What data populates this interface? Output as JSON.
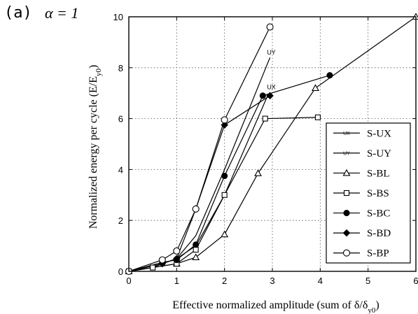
{
  "panel_label": "(a)",
  "alpha_label": "α = 1",
  "chart_data": {
    "type": "line",
    "title": "",
    "xlabel": "Effective normalized amplitude (sum of δ/δ",
    "xlabel_sub": "y0",
    "xlabel_end": ")",
    "ylabel": "Normalized energy per cycle (E/E",
    "ylabel_sub": "y0",
    "ylabel_end": ")",
    "xlim": [
      0,
      6
    ],
    "ylim": [
      0,
      10
    ],
    "xticks": [
      0,
      1,
      2,
      3,
      4,
      5,
      6
    ],
    "yticks": [
      0,
      2,
      4,
      6,
      8,
      10
    ],
    "grid": true,
    "legend_position": "right",
    "series": [
      {
        "name": "S-UX",
        "marker": "ux",
        "x": [
          0,
          0.5,
          0.7,
          1.0,
          1.4,
          2.0,
          2.9
        ],
        "y": [
          0,
          0.15,
          0.3,
          0.5,
          1.0,
          3.0,
          6.9
        ]
      },
      {
        "name": "S-UY",
        "marker": "uy",
        "x": [
          0,
          0.5,
          0.7,
          1.0,
          1.4,
          2.0,
          2.95
        ],
        "y": [
          0,
          0.15,
          0.3,
          0.5,
          1.4,
          4.0,
          8.4
        ]
      },
      {
        "name": "S-BL",
        "marker": "triangle",
        "x": [
          0,
          1.0,
          1.4,
          2.0,
          2.7,
          3.9,
          6.0
        ],
        "y": [
          0,
          0.3,
          0.55,
          1.45,
          3.85,
          7.2,
          10.0
        ]
      },
      {
        "name": "S-BS",
        "marker": "square",
        "x": [
          0,
          0.5,
          1.0,
          1.4,
          2.0,
          2.85,
          3.95
        ],
        "y": [
          0,
          0.15,
          0.3,
          0.85,
          3.0,
          6.0,
          6.05
        ]
      },
      {
        "name": "S-BC",
        "marker": "filled-circle",
        "x": [
          0,
          0.7,
          1.0,
          1.4,
          2.0,
          2.8,
          4.2
        ],
        "y": [
          0,
          0.35,
          0.45,
          1.05,
          3.75,
          6.9,
          7.7
        ]
      },
      {
        "name": "S-BD",
        "marker": "filled-diamond",
        "x": [
          0,
          0.7,
          1.0,
          1.4,
          2.0,
          2.95
        ],
        "y": [
          0,
          0.3,
          0.5,
          2.45,
          5.75,
          6.9
        ]
      },
      {
        "name": "S-BP",
        "marker": "open-circle",
        "x": [
          0,
          0.7,
          1.0,
          1.4,
          2.0,
          2.95
        ],
        "y": [
          0,
          0.45,
          0.8,
          2.45,
          5.95,
          9.6
        ]
      }
    ],
    "point_labels": [
      {
        "text": "UY",
        "x": 2.95,
        "y": 8.4
      },
      {
        "text": "UX",
        "x": 2.95,
        "y": 7.05
      }
    ]
  }
}
